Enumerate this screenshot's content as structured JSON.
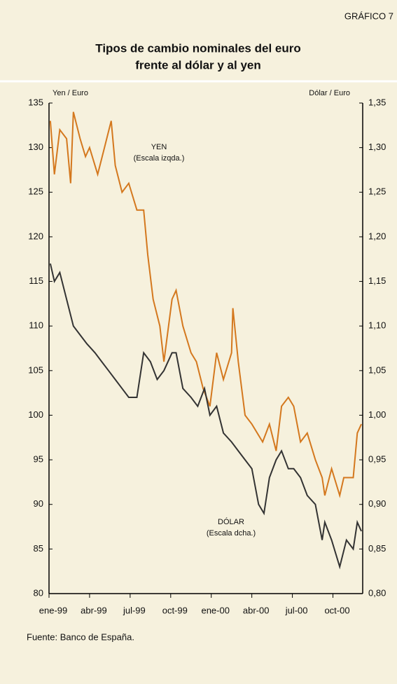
{
  "chart_data": {
    "type": "line",
    "label": "GRÁFICO 7",
    "title": [
      "Tipos de cambio nominales del euro",
      "frente al dólar y al yen"
    ],
    "ylabel": "Yen / Euro",
    "y2label": "Dólar / Euro",
    "source": "Fuente: Banco de España.",
    "annotations": [
      {
        "lines": [
          "YEN",
          "(Escala izqda.)"
        ],
        "series": 0
      },
      {
        "lines": [
          "DÓLAR",
          "(Escala dcha.)"
        ],
        "series": 1
      }
    ],
    "xlim": [
      0,
      23.2
    ],
    "xticks": [
      {
        "value": 0,
        "label": "ene-99"
      },
      {
        "value": 3,
        "label": "abr-99"
      },
      {
        "value": 6,
        "label": "jul-99"
      },
      {
        "value": 9,
        "label": "oct-99"
      },
      {
        "value": 12,
        "label": "ene-00"
      },
      {
        "value": 15,
        "label": "abr-00"
      },
      {
        "value": 18,
        "label": "jul-00"
      },
      {
        "value": 21,
        "label": "oct-00"
      }
    ],
    "ylim": [
      80,
      135
    ],
    "yticks": [
      80,
      85,
      90,
      95,
      100,
      105,
      110,
      115,
      120,
      125,
      130,
      135
    ],
    "y2lim": [
      0.8,
      1.35
    ],
    "y2ticks": [
      {
        "value": 0.8,
        "label": "0,80"
      },
      {
        "value": 0.85,
        "label": "0,85"
      },
      {
        "value": 0.9,
        "label": "0,90"
      },
      {
        "value": 0.95,
        "label": "0,95"
      },
      {
        "value": 1.0,
        "label": "1,00"
      },
      {
        "value": 1.05,
        "label": "1,05"
      },
      {
        "value": 1.1,
        "label": "1,10"
      },
      {
        "value": 1.15,
        "label": "1,15"
      },
      {
        "value": 1.2,
        "label": "1,20"
      },
      {
        "value": 1.25,
        "label": "1,25"
      },
      {
        "value": 1.3,
        "label": "1,30"
      },
      {
        "value": 1.35,
        "label": "1,35"
      }
    ],
    "series": [
      {
        "name": "YEN",
        "color": "#d4781e",
        "axis": "y",
        "x": [
          0.1,
          0.4,
          0.8,
          1.3,
          1.6,
          1.8,
          2.3,
          2.7,
          3.0,
          3.6,
          4.1,
          4.6,
          4.9,
          5.4,
          5.9,
          6.5,
          7.0,
          7.3,
          7.7,
          8.2,
          8.5,
          9.1,
          9.4,
          9.9,
          10.5,
          10.9,
          11.4,
          11.9,
          12.4,
          12.9,
          13.5,
          13.6,
          14.0,
          14.5,
          15.0,
          15.8,
          16.3,
          16.8,
          17.2,
          17.7,
          18.1,
          18.6,
          19.1,
          19.7,
          20.2,
          20.4,
          20.9,
          21.5,
          21.8,
          22.5,
          22.8,
          23.1
        ],
        "values": [
          133,
          127,
          132,
          131,
          126,
          134,
          131,
          129,
          130,
          127,
          130,
          133,
          128,
          125,
          126,
          123,
          123,
          118,
          113,
          110,
          106,
          113,
          114,
          110,
          107,
          106,
          103,
          101,
          107,
          104,
          107,
          112,
          106,
          100,
          99,
          97,
          99,
          96,
          101,
          102,
          101,
          97,
          98,
          95,
          93,
          91,
          94,
          91,
          93,
          93,
          98,
          99
        ]
      },
      {
        "name": "DÓLAR",
        "color": "#333333",
        "axis": "y2",
        "x": [
          0.1,
          0.4,
          0.8,
          1.3,
          1.8,
          2.3,
          2.8,
          3.4,
          3.9,
          4.4,
          4.9,
          5.4,
          5.9,
          6.5,
          7.0,
          7.5,
          8.0,
          8.5,
          9.1,
          9.4,
          9.9,
          10.5,
          11.0,
          11.5,
          11.9,
          12.4,
          12.9,
          13.5,
          14.0,
          14.5,
          15.0,
          15.5,
          15.9,
          16.3,
          16.8,
          17.2,
          17.7,
          18.1,
          18.6,
          19.1,
          19.7,
          20.2,
          20.4,
          20.9,
          21.5,
          22.0,
          22.5,
          22.8,
          23.1
        ],
        "values": [
          1.17,
          1.15,
          1.16,
          1.13,
          1.1,
          1.09,
          1.08,
          1.07,
          1.06,
          1.05,
          1.04,
          1.03,
          1.02,
          1.02,
          1.07,
          1.06,
          1.04,
          1.05,
          1.07,
          1.07,
          1.03,
          1.02,
          1.01,
          1.03,
          1.0,
          1.01,
          0.98,
          0.97,
          0.96,
          0.95,
          0.94,
          0.9,
          0.89,
          0.93,
          0.95,
          0.96,
          0.94,
          0.94,
          0.93,
          0.91,
          0.9,
          0.86,
          0.88,
          0.86,
          0.83,
          0.86,
          0.85,
          0.88,
          0.87
        ]
      }
    ]
  }
}
